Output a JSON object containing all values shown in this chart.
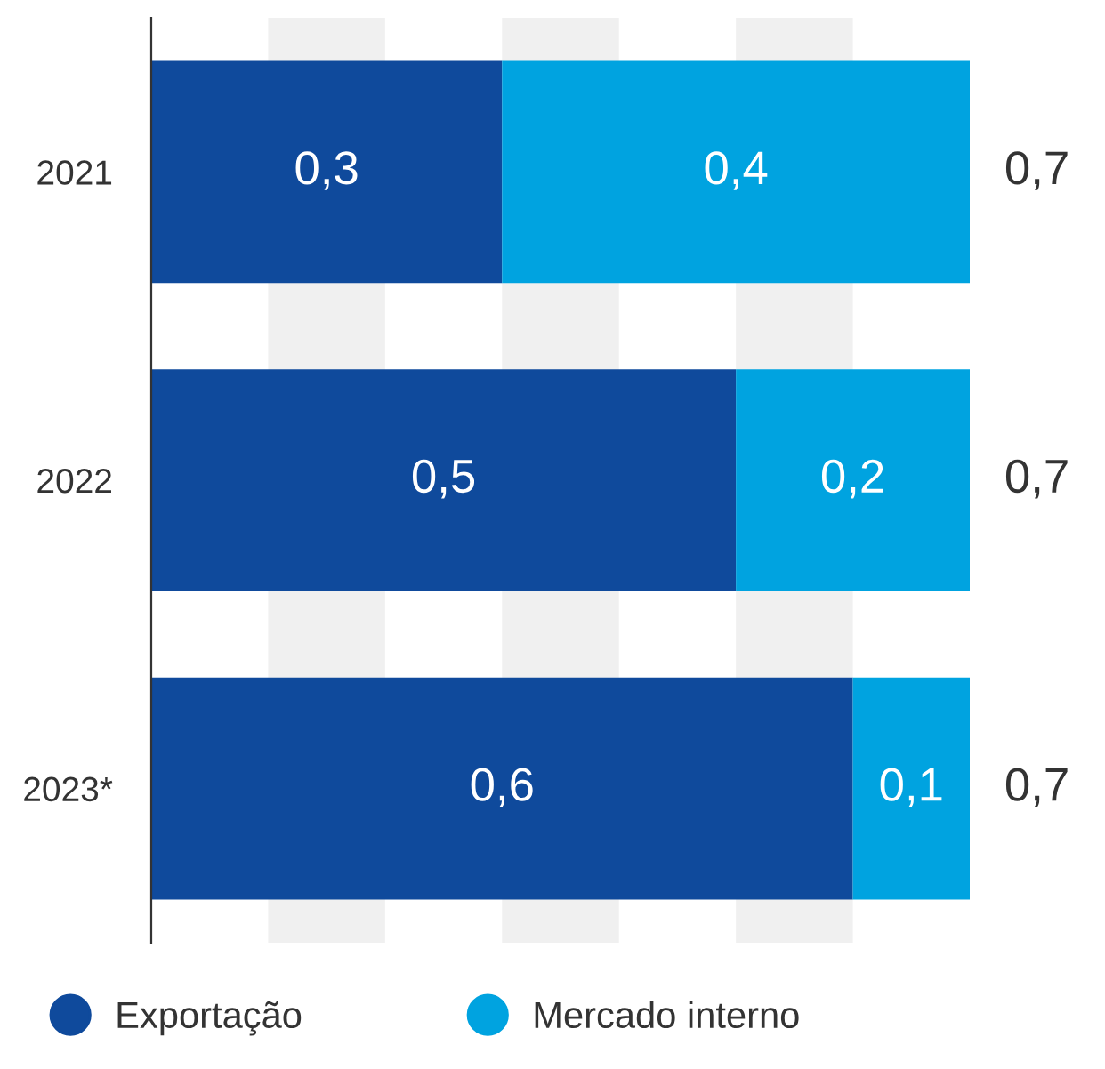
{
  "chart_data": {
    "type": "bar",
    "orientation": "horizontal",
    "stacked": true,
    "categories": [
      "2021",
      "2022",
      "2023*"
    ],
    "series": [
      {
        "name": "Exportação",
        "color": "#0f4a9c",
        "values": [
          0.3,
          0.5,
          0.6
        ],
        "value_labels": [
          "0,3",
          "0,5",
          "0,6"
        ]
      },
      {
        "name": "Mercado interno",
        "color": "#00a3e0",
        "values": [
          0.4,
          0.2,
          0.1
        ],
        "value_labels": [
          "0,4",
          "0,2",
          "0,1"
        ]
      }
    ],
    "totals": [
      "0,7",
      "0,7",
      "0,7"
    ],
    "xlim": [
      0,
      0.7
    ],
    "bands": [
      {
        "axis": "x",
        "from": 0.1,
        "to": 0.2,
        "color": "#f0f0f0"
      },
      {
        "axis": "x",
        "from": 0.3,
        "to": 0.4,
        "color": "#f0f0f0"
      },
      {
        "axis": "x",
        "from": 0.5,
        "to": 0.6,
        "color": "#f0f0f0"
      }
    ],
    "tick_labels": "y",
    "grid": false,
    "legend": "bottom left"
  }
}
